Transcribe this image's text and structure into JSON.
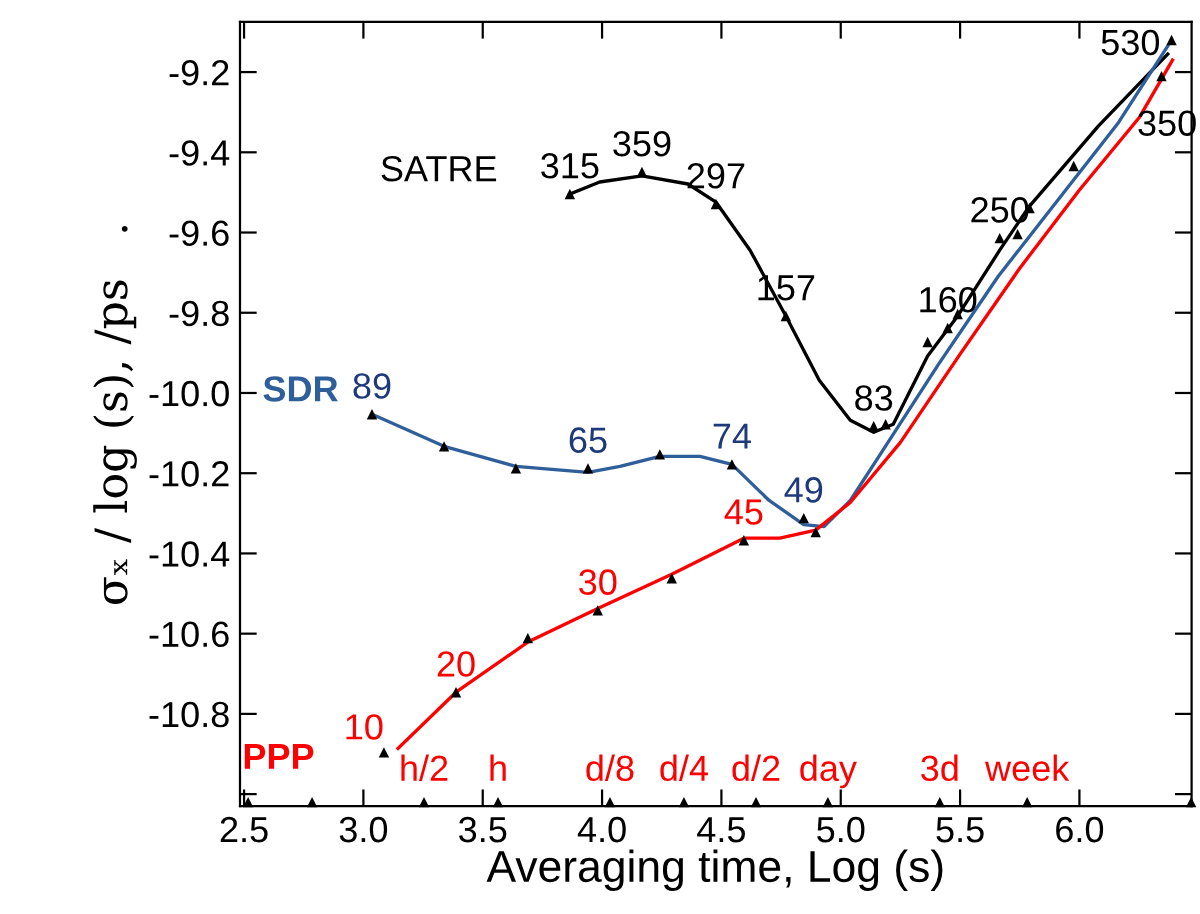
{
  "chart_data": {
    "type": "line",
    "xlabel": "Averaging time, Log (s)",
    "ylabel": "σₓ / log (s), /ps   .",
    "xlim": [
      2.483,
      6.47
    ],
    "xticks": [
      2.5,
      {
        "value": 3.0,
        "label": "3.0"
      },
      3.5,
      {
        "value": 4.0,
        "label": "4.0"
      },
      4.5,
      {
        "value": 5.0,
        "label": "5.0"
      },
      5.5,
      {
        "value": 6.0,
        "label": "6.0"
      }
    ],
    "ylim": [
      -11.03,
      -9.075
    ],
    "yticks": [
      -9.2,
      -9.4,
      -9.6,
      -9.8,
      {
        "value": -10.0,
        "label": "-10.0"
      },
      -10.2,
      -10.4,
      -10.6,
      -10.8,
      {
        "value": -11.0,
        "label": null
      }
    ],
    "grid": false,
    "legend": false,
    "marker": "none",
    "line_style": "solid",
    "series": [
      {
        "name": "SATRE",
        "color": "#000000",
        "x": [
          3.865,
          3.99,
          4.167,
          4.36,
          4.477,
          4.62,
          4.77,
          4.91,
          5.04,
          5.138,
          5.22,
          5.364,
          5.49,
          5.666,
          5.791,
          6.08,
          6.37
        ],
        "values": [
          -9.504,
          -9.474,
          -9.459,
          -9.479,
          -9.524,
          -9.644,
          -9.808,
          -9.968,
          -10.068,
          -10.098,
          -10.078,
          -9.908,
          -9.808,
          -9.644,
          -9.534,
          -9.334,
          -9.155
        ]
      },
      {
        "name": "SDR",
        "color": "#2f5f9a",
        "x": [
          3.036,
          3.338,
          3.639,
          3.941,
          4.075,
          4.242,
          4.41,
          4.544,
          4.7,
          4.845,
          4.93,
          5.04,
          5.16,
          5.41,
          5.66,
          5.91,
          6.16,
          6.37
        ],
        "values": [
          -10.053,
          -10.133,
          -10.183,
          -10.198,
          -10.183,
          -10.158,
          -10.158,
          -10.178,
          -10.268,
          -10.328,
          -10.333,
          -10.268,
          -10.158,
          -9.928,
          -9.709,
          -9.519,
          -9.329,
          -9.135
        ]
      },
      {
        "name": "PPP",
        "color": "#ff0000",
        "x": [
          3.145,
          3.388,
          3.689,
          3.982,
          4.292,
          4.594,
          4.745,
          4.895,
          5.04,
          5.25,
          5.5,
          5.75,
          6.0,
          6.25,
          6.39
        ],
        "values": [
          -10.886,
          -10.746,
          -10.621,
          -10.537,
          -10.452,
          -10.362,
          -10.362,
          -10.342,
          -10.273,
          -10.123,
          -9.903,
          -9.689,
          -9.494,
          -9.314,
          -9.17
        ]
      },
      {
        "type": "scatter",
        "color": "#000000",
        "marker": "triangle",
        "x": [
          3.865,
          4.167,
          4.477,
          4.77,
          5.138,
          5.188,
          5.364,
          5.448,
          5.49,
          5.666,
          5.791,
          6.386,
          3.036,
          3.338,
          3.639,
          3.941,
          4.242,
          4.544,
          4.845,
          5.741,
          3.086,
          3.388,
          3.689,
          3.982,
          4.292,
          4.594,
          4.895,
          5.976,
          6.344
        ],
        "values": [
          -9.504,
          -9.449,
          -9.529,
          -9.808,
          -10.083,
          -10.078,
          -9.873,
          -9.838,
          -9.803,
          -9.614,
          -9.539,
          -9.12,
          -10.053,
          -10.133,
          -10.188,
          -10.188,
          -10.153,
          -10.178,
          -10.312,
          -9.604,
          -10.896,
          -10.746,
          -10.611,
          -10.542,
          -10.462,
          -10.367,
          -10.347,
          -9.434,
          -9.21
        ]
      },
      {
        "type": "scatter",
        "color": "#000000",
        "marker": "triangle",
        "x": [
          2.517,
          2.785,
          3.254,
          3.564,
          4.033,
          4.343,
          4.645,
          4.946,
          5.415,
          5.781,
          6.468
        ],
        "values": [
          -11.02,
          -11.02,
          -11.02,
          -11.02,
          -11.02,
          -11.02,
          -11.02,
          -11.02,
          -11.02,
          -11.02,
          -11.02
        ]
      }
    ],
    "annotations": [
      {
        "text": "315",
        "x": 3.865,
        "y": -9.504
      },
      {
        "text": "359",
        "x": 4.167,
        "y": -9.449
      },
      {
        "text": "297",
        "x": 4.477,
        "y": -9.529
      },
      {
        "text": "157",
        "x": 4.77,
        "y": -9.808
      },
      {
        "text": "83",
        "x": 5.138,
        "y": -10.083
      },
      {
        "text": "160",
        "x": 5.448,
        "y": -9.838
      },
      {
        "text": "250",
        "x": 5.666,
        "y": -9.614
      },
      {
        "text": "530",
        "x": 6.386,
        "y": -9.12
      },
      {
        "text": "350",
        "x": 6.344,
        "y": -9.21
      },
      {
        "text": "89",
        "x": 3.036,
        "y": -10.053
      },
      {
        "text": "65",
        "x": 3.941,
        "y": -10.188
      },
      {
        "text": "74",
        "x": 4.544,
        "y": -10.178
      },
      {
        "text": "49",
        "x": 4.845,
        "y": -10.312
      },
      {
        "text": "10",
        "x": 3.086,
        "y": -10.896
      },
      {
        "text": "20",
        "x": 3.388,
        "y": -10.746
      },
      {
        "text": "30",
        "x": 3.982,
        "y": -10.542
      },
      {
        "text": "45",
        "x": 4.594,
        "y": -10.367
      },
      {
        "text": "h/2",
        "x": 3.254,
        "y": -11.02
      },
      {
        "text": "h",
        "x": 3.564,
        "y": -11.02
      },
      {
        "text": "d/8",
        "x": 4.033,
        "y": -11.02
      },
      {
        "text": "d/4",
        "x": 4.343,
        "y": -11.02
      },
      {
        "text": "d/2",
        "x": 4.645,
        "y": -11.02
      },
      {
        "text": "day",
        "x": 4.946,
        "y": -11.02
      },
      {
        "text": "3d",
        "x": 5.415,
        "y": -11.02
      },
      {
        "text": "week",
        "x": 5.781,
        "y": -11.02
      }
    ]
  }
}
